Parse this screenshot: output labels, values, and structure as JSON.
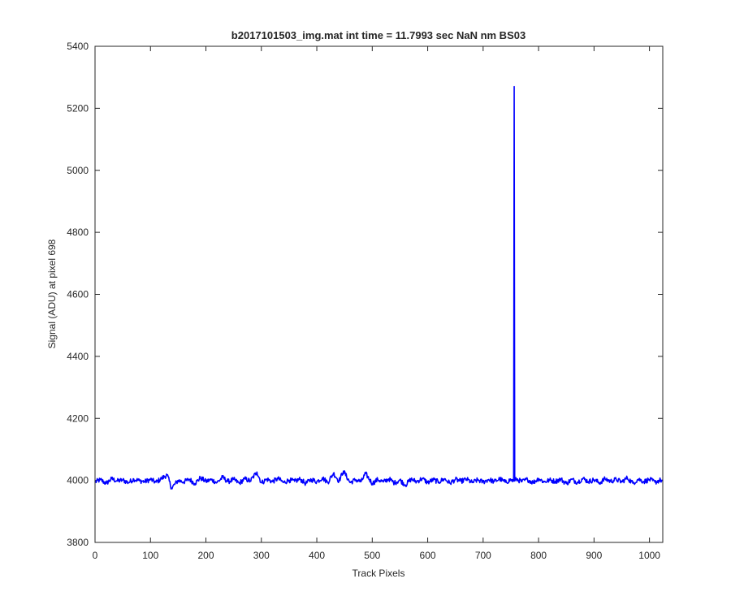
{
  "chart_data": {
    "type": "line",
    "title": "b2017101503_img.mat int time = 11.7993 sec  NaN nm BS03",
    "xlabel": "Track Pixels",
    "ylabel": "Signal (ADU) at pixel 698",
    "xlim": [
      0,
      1024
    ],
    "ylim": [
      3800,
      5400
    ],
    "xticks": [
      0,
      100,
      200,
      300,
      400,
      500,
      600,
      700,
      800,
      900,
      1000
    ],
    "yticks": [
      3800,
      4000,
      4200,
      4400,
      4600,
      4800,
      5000,
      5200,
      5400
    ],
    "grid": false,
    "legend": "none",
    "line_color": "#0000ff",
    "series": [
      {
        "baseline": 4000,
        "noise_amplitude": 8,
        "spike": {
          "x": 756,
          "y": 5270
        },
        "points": [
          [
            0,
            3995
          ],
          [
            10,
            4002
          ],
          [
            20,
            3990
          ],
          [
            30,
            4005
          ],
          [
            40,
            3998
          ],
          [
            50,
            4001
          ],
          [
            60,
            3993
          ],
          [
            70,
            4004
          ],
          [
            80,
            3999
          ],
          [
            90,
            3996
          ],
          [
            100,
            4003
          ],
          [
            110,
            3994
          ],
          [
            120,
            4006
          ],
          [
            130,
            4018
          ],
          [
            138,
            3975
          ],
          [
            150,
            4000
          ],
          [
            160,
            3995
          ],
          [
            170,
            4004
          ],
          [
            180,
            3990
          ],
          [
            190,
            4008
          ],
          [
            200,
            3997
          ],
          [
            210,
            4002
          ],
          [
            220,
            3993
          ],
          [
            230,
            4010
          ],
          [
            240,
            3996
          ],
          [
            250,
            4003
          ],
          [
            260,
            3991
          ],
          [
            270,
            4005
          ],
          [
            280,
            3998
          ],
          [
            292,
            4027
          ],
          [
            300,
            3992
          ],
          [
            310,
            4004
          ],
          [
            320,
            3996
          ],
          [
            330,
            4006
          ],
          [
            340,
            3993
          ],
          [
            350,
            4001
          ],
          [
            360,
            3997
          ],
          [
            370,
            4004
          ],
          [
            380,
            3990
          ],
          [
            390,
            4003
          ],
          [
            400,
            3996
          ],
          [
            410,
            4008
          ],
          [
            420,
            3994
          ],
          [
            430,
            4023
          ],
          [
            440,
            3998
          ],
          [
            448,
            4030
          ],
          [
            460,
            3993
          ],
          [
            470,
            4002
          ],
          [
            480,
            3996
          ],
          [
            488,
            4022
          ],
          [
            500,
            3990
          ],
          [
            510,
            4003
          ],
          [
            520,
            3995
          ],
          [
            530,
            4005
          ],
          [
            540,
            3992
          ],
          [
            550,
            4001
          ],
          [
            560,
            3985
          ],
          [
            570,
            4004
          ],
          [
            580,
            3996
          ],
          [
            590,
            4006
          ],
          [
            600,
            3993
          ],
          [
            610,
            4002
          ],
          [
            620,
            3995
          ],
          [
            630,
            4005
          ],
          [
            640,
            3991
          ],
          [
            650,
            4003
          ],
          [
            660,
            3997
          ],
          [
            670,
            4004
          ],
          [
            680,
            3993
          ],
          [
            690,
            4001
          ],
          [
            700,
            3995
          ],
          [
            710,
            4003
          ],
          [
            720,
            3996
          ],
          [
            730,
            4005
          ],
          [
            740,
            3994
          ],
          [
            750,
            4002
          ],
          [
            755,
            3998
          ],
          [
            756,
            5270
          ],
          [
            757,
            3998
          ],
          [
            760,
            4004
          ],
          [
            770,
            3996
          ],
          [
            780,
            4003
          ],
          [
            790,
            3993
          ],
          [
            800,
            4006
          ],
          [
            810,
            3995
          ],
          [
            820,
            4001
          ],
          [
            830,
            3997
          ],
          [
            840,
            4004
          ],
          [
            850,
            3990
          ],
          [
            860,
            4003
          ],
          [
            870,
            3994
          ],
          [
            880,
            4006
          ],
          [
            890,
            3996
          ],
          [
            900,
            4002
          ],
          [
            910,
            3992
          ],
          [
            920,
            4005
          ],
          [
            930,
            3997
          ],
          [
            940,
            4003
          ],
          [
            950,
            3995
          ],
          [
            960,
            4008
          ],
          [
            970,
            3991
          ],
          [
            980,
            4004
          ],
          [
            990,
            3996
          ],
          [
            1000,
            4003
          ],
          [
            1010,
            3994
          ],
          [
            1020,
            4001
          ],
          [
            1024,
            3998
          ]
        ]
      }
    ]
  }
}
